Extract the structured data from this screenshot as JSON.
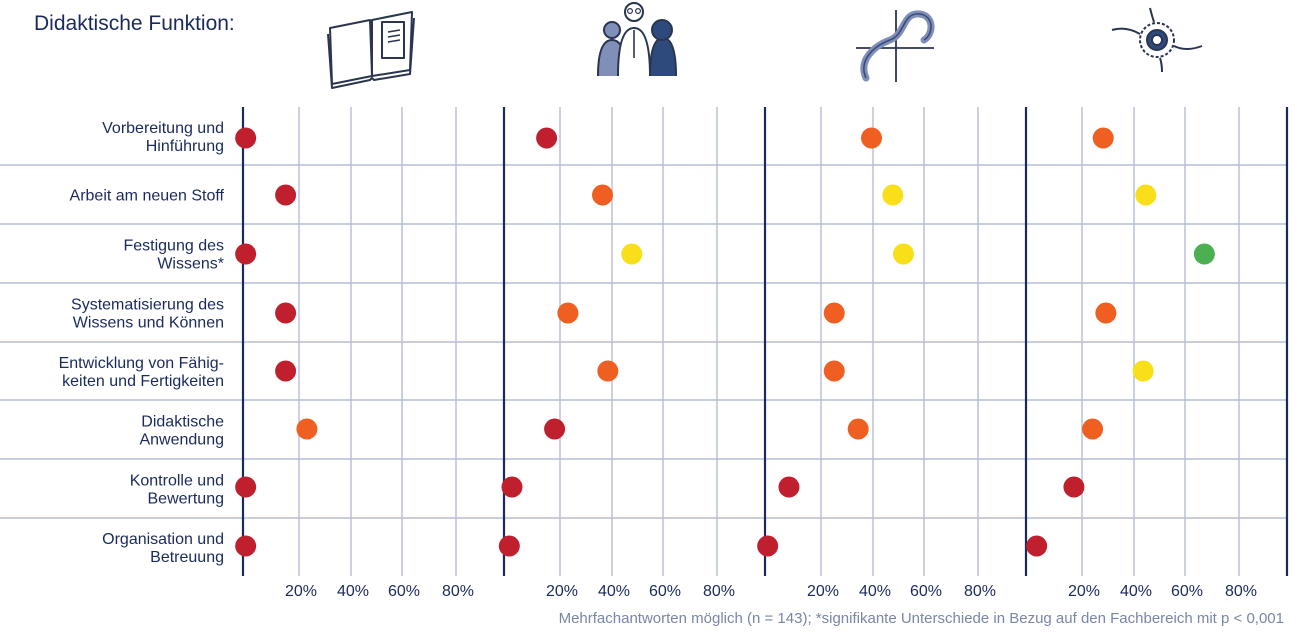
{
  "chart_data": {
    "type": "scatter",
    "title": "Didaktische Funktion:",
    "note": "Mehrfachantworten möglich (n = 143); *signifikante Unterschiede in Bezug auf den Fachbereich mit p < 0,001",
    "panels": [
      {
        "icon": "open-book-icon"
      },
      {
        "icon": "people-group-icon"
      },
      {
        "icon": "function-curve-icon"
      },
      {
        "icon": "gear-hands-icon"
      }
    ],
    "tick_labels": [
      "20%",
      "40%",
      "60%",
      "80%"
    ],
    "xlim": [
      0,
      100
    ],
    "categories": [
      [
        "Vorbereitung und",
        "Hinführung"
      ],
      [
        "Arbeit am neuen Stoff"
      ],
      [
        "Festigung des",
        "Wissens*"
      ],
      [
        "Systematisierung des",
        "Wissens und Können"
      ],
      [
        "Entwicklung von Fähig-",
        "keiten und Fertigkeiten"
      ],
      [
        "Didaktische",
        "Anwendung"
      ],
      [
        "Kontrolle und",
        "Bewertung"
      ],
      [
        "Organisation und",
        "Betreuung"
      ]
    ],
    "values": [
      [
        1,
        16,
        40,
        29
      ],
      [
        16,
        37,
        48,
        45
      ],
      [
        1,
        48,
        52,
        67
      ],
      [
        16,
        24,
        26,
        30
      ],
      [
        16,
        39,
        26,
        44
      ],
      [
        24,
        19,
        35,
        25
      ],
      [
        1,
        3,
        9,
        18
      ],
      [
        1,
        2,
        1,
        4
      ]
    ],
    "dot_colors": [
      [
        "#c0202e",
        "#c0202e",
        "#ef5f22",
        "#ef5f22"
      ],
      [
        "#c0202e",
        "#ef5f22",
        "#f9de1a",
        "#f9de1a"
      ],
      [
        "#c0202e",
        "#f9de1a",
        "#f9de1a",
        "#4caf50"
      ],
      [
        "#c0202e",
        "#ef5f22",
        "#ef5f22",
        "#ef5f22"
      ],
      [
        "#c0202e",
        "#ef5f22",
        "#ef5f22",
        "#f9de1a"
      ],
      [
        "#ef5f22",
        "#c0202e",
        "#ef5f22",
        "#ef5f22"
      ],
      [
        "#c0202e",
        "#c0202e",
        "#c0202e",
        "#c0202e"
      ],
      [
        "#c0202e",
        "#c0202e",
        "#c0202e",
        "#c0202e"
      ]
    ],
    "colors": {
      "axis": "#1a2a5c",
      "grid": "#b6bdd6",
      "text": "#1a2a5c"
    }
  }
}
